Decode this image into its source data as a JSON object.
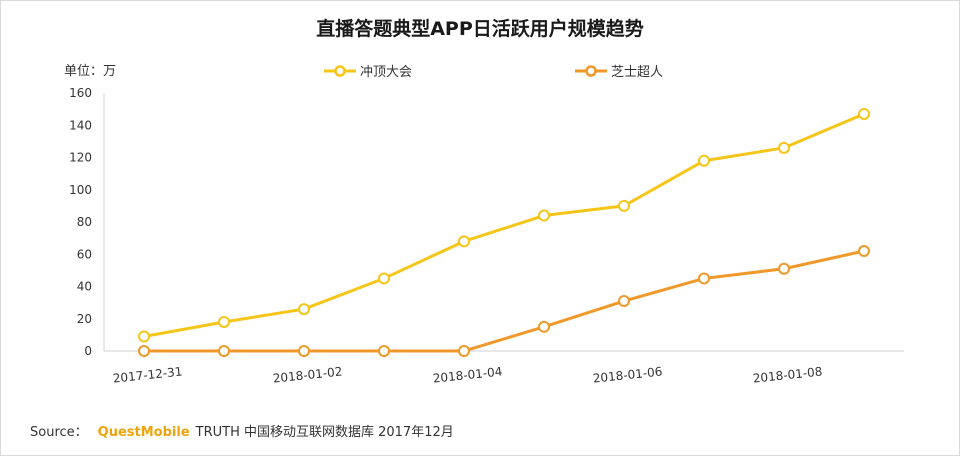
{
  "title": "直播答题典型APP日活跃用户规模趋势",
  "unit_label": "单位：万",
  "source": {
    "prefix": "Source：",
    "brand": "QuestMobile",
    "text": "TRUTH 中国移动互联网数据库 2017年12月"
  },
  "chart_data": {
    "type": "line",
    "title": "直播答题典型APP日活跃用户规模趋势",
    "ylabel": "单位：万",
    "xlabel": "",
    "x": [
      "2017-12-31",
      "2018-01-01",
      "2018-01-02",
      "2018-01-03",
      "2018-01-04",
      "2018-01-05",
      "2018-01-06",
      "2018-01-07",
      "2018-01-08",
      "2018-01-09"
    ],
    "x_tick_labels": [
      "2017-12-31",
      "",
      "2018-01-02",
      "",
      "2018-01-04",
      "",
      "2018-01-06",
      "",
      "2018-01-08",
      ""
    ],
    "ylim": [
      0,
      160
    ],
    "yticks": [
      0,
      20,
      40,
      60,
      80,
      100,
      120,
      140,
      160
    ],
    "grid": false,
    "legend_position": "top",
    "series": [
      {
        "name": "冲顶大会",
        "color": "#f5c518",
        "values": [
          9,
          18,
          26,
          45,
          68,
          84,
          90,
          118,
          126,
          147
        ]
      },
      {
        "name": "芝士超人",
        "color": "#f0982a",
        "values": [
          0,
          0,
          0,
          0,
          0,
          15,
          31,
          45,
          51,
          62
        ]
      }
    ]
  }
}
